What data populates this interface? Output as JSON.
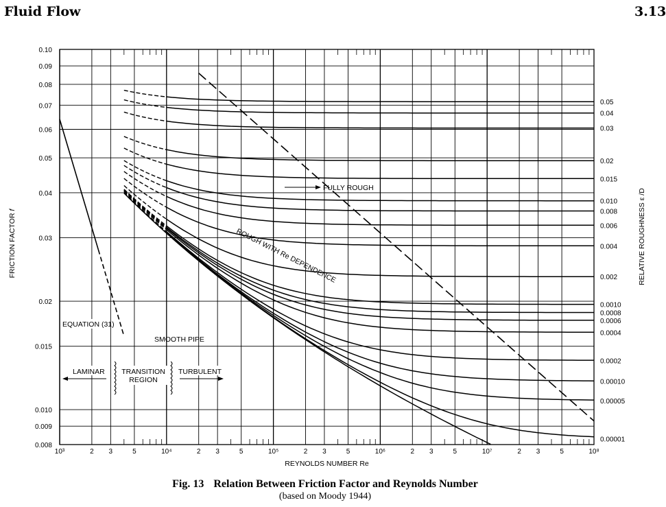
{
  "header": {
    "title": "Fluid Flow",
    "page_number": "3.13"
  },
  "caption": {
    "figure_label": "Fig. 13",
    "title": "Relation Between Friction Factor and Reynolds Number",
    "subtitle": "(based on Moody 1944)"
  },
  "chart_data": {
    "type": "line",
    "xlabel": "REYNOLDS NUMBER Re",
    "ylabel": "FRICTION FACTOR",
    "ylabel_symbol": "f",
    "y2label": "RELATIVE ROUGHNESS ε /D",
    "x_scale": "log",
    "y_scale": "log",
    "xlim": [
      1000,
      100000000
    ],
    "ylim": [
      0.008,
      0.1
    ],
    "grid": true,
    "x_tick_labels": [
      {
        "x": 1000,
        "label": "10³"
      },
      {
        "x": 2000,
        "label": "2"
      },
      {
        "x": 3000,
        "label": "3"
      },
      {
        "x": 5000,
        "label": "5"
      },
      {
        "x": 10000,
        "label": "10⁴"
      },
      {
        "x": 20000,
        "label": "2"
      },
      {
        "x": 30000,
        "label": "3"
      },
      {
        "x": 50000,
        "label": "5"
      },
      {
        "x": 100000,
        "label": "10⁵"
      },
      {
        "x": 200000,
        "label": "2"
      },
      {
        "x": 300000,
        "label": "3"
      },
      {
        "x": 500000,
        "label": "5"
      },
      {
        "x": 1000000,
        "label": "10⁶"
      },
      {
        "x": 2000000,
        "label": "2"
      },
      {
        "x": 3000000,
        "label": "3"
      },
      {
        "x": 5000000,
        "label": "5"
      },
      {
        "x": 10000000,
        "label": "10⁷"
      },
      {
        "x": 20000000,
        "label": "2"
      },
      {
        "x": 30000000,
        "label": "3"
      },
      {
        "x": 50000000,
        "label": "5"
      },
      {
        "x": 100000000,
        "label": "10⁸"
      }
    ],
    "y_tick_labels": [
      {
        "y": 0.1,
        "label": "0.10"
      },
      {
        "y": 0.09,
        "label": "0.09"
      },
      {
        "y": 0.08,
        "label": "0.08"
      },
      {
        "y": 0.07,
        "label": "0.07"
      },
      {
        "y": 0.06,
        "label": "0.06"
      },
      {
        "y": 0.05,
        "label": "0.05"
      },
      {
        "y": 0.04,
        "label": "0.04"
      },
      {
        "y": 0.03,
        "label": "0.03"
      },
      {
        "y": 0.02,
        "label": "0.02"
      },
      {
        "y": 0.015,
        "label": "0.015"
      },
      {
        "y": 0.01,
        "label": "0.010"
      },
      {
        "y": 0.009,
        "label": "0.009"
      },
      {
        "y": 0.008,
        "label": "0.008"
      }
    ],
    "roughness_curves": [
      {
        "label": "0.05",
        "f": 0.0716
      },
      {
        "label": "0.04",
        "f": 0.0666
      },
      {
        "label": "0.03",
        "f": 0.0605
      },
      {
        "label": "0.02",
        "f": 0.0491
      },
      {
        "label": "0.015",
        "f": 0.0438
      },
      {
        "label": "0.010",
        "f": 0.038
      },
      {
        "label": "0.008",
        "f": 0.0356
      },
      {
        "label": "0.006",
        "f": 0.0325
      },
      {
        "label": "0.004",
        "f": 0.0285
      },
      {
        "label": "0.002",
        "f": 0.0234
      },
      {
        "label": "0.0010",
        "f": 0.0196
      },
      {
        "label": "0.0008",
        "f": 0.0186
      },
      {
        "label": "0.0006",
        "f": 0.0177
      },
      {
        "label": "0.0004",
        "f": 0.0164
      },
      {
        "label": "0.0002",
        "f": 0.0137
      },
      {
        "label": "0.00010",
        "f": 0.012
      },
      {
        "label": "0.00005",
        "f": 0.0106
      },
      {
        "label": "0.00001",
        "f": 0.0083
      }
    ],
    "laminar_line": {
      "label": "EQUATION (31)",
      "points": [
        {
          "x": 1000,
          "y": 0.064
        },
        {
          "x": 2300,
          "y": 0.0278
        }
      ]
    },
    "laminar_extension": {
      "points": [
        {
          "x": 2300,
          "y": 0.0278
        },
        {
          "x": 4000,
          "y": 0.016
        }
      ]
    },
    "fully_rough_boundary": {
      "points": [
        {
          "x": 20000,
          "y": 0.0859
        },
        {
          "x": 100000000,
          "y": 0.0093
        }
      ]
    },
    "annotations": [
      {
        "text": "FULLY ROUGH"
      },
      {
        "text": "ROUGH WITH Re DEPENDENCE"
      },
      {
        "text": "SMOOTH PIPE"
      },
      {
        "text": "EQUATION (31)"
      },
      {
        "text": "LAMINAR"
      },
      {
        "text": "TRANSITION"
      },
      {
        "text": "REGION"
      },
      {
        "text": "TURBULENT"
      }
    ]
  }
}
